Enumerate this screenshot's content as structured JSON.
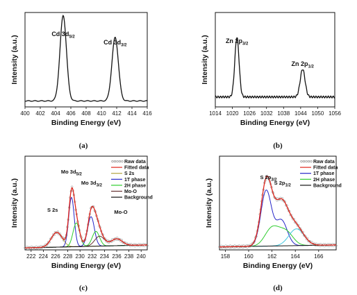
{
  "panel_labels": [
    "(a)",
    "(b)",
    "(c)",
    "(d)"
  ],
  "chart_data": [
    {
      "id": "a",
      "type": "line",
      "xlabel": "Binding Energy (eV)",
      "ylabel": "Intensity (a.u.)",
      "xlim": [
        400,
        416
      ],
      "xticks": [
        400,
        402,
        404,
        406,
        408,
        410,
        412,
        414,
        416
      ],
      "background": 0.06,
      "peaks": [
        {
          "center": 405.0,
          "height": 0.86,
          "width": 0.42
        },
        {
          "center": 411.8,
          "height": 0.64,
          "width": 0.42
        }
      ],
      "annotations": [
        {
          "main": "Cd 3d",
          "sub": "5/2",
          "x": 405.0
        },
        {
          "main": "Cd 3d",
          "sub": "3/2",
          "x": 411.8
        }
      ],
      "series": [
        {
          "color": "#111111"
        }
      ]
    },
    {
      "id": "b",
      "type": "line",
      "xlabel": "Binding Energy (eV)",
      "ylabel": "Intensity (a.u.)",
      "xlim": [
        1014,
        1056
      ],
      "xticks": [
        1014,
        1020,
        1026,
        1032,
        1038,
        1044,
        1050,
        1056
      ],
      "background": 0.1,
      "peaks": [
        {
          "center": 1021.6,
          "height": 0.6,
          "width": 0.75
        },
        {
          "center": 1044.7,
          "height": 0.28,
          "width": 0.85
        }
      ],
      "annotations": [
        {
          "main": "Zn 2p",
          "sub": "3/2",
          "x": 1021.6
        },
        {
          "main": "Zn 2p",
          "sub": "1/2",
          "x": 1044.7
        }
      ],
      "series": [
        {
          "color": "#111111"
        }
      ]
    },
    {
      "id": "c",
      "type": "line",
      "xlabel": "Binding Energy (eV)",
      "ylabel": "Intensity (a.u.)",
      "xlim": [
        221,
        241
      ],
      "xticks": [
        222,
        224,
        226,
        228,
        230,
        232,
        234,
        236,
        238,
        240
      ],
      "legend": {
        "position": "top-right",
        "entries": [
          "Raw data",
          "Fitted data",
          "S 2s",
          "1T phase",
          "2H phase",
          "Mo-O",
          "Background"
        ]
      },
      "series": [
        {
          "name": "Raw data",
          "color": "#888888",
          "style": "markers"
        },
        {
          "name": "Fitted data",
          "color": "#e0241b"
        },
        {
          "name": "S 2s",
          "color": "#b5a642",
          "peaks": [
            {
              "center": 226.2,
              "height": 0.15,
              "width": 0.9
            }
          ]
        },
        {
          "name": "1T phase",
          "color": "#2525c8",
          "peaks": [
            {
              "center": 228.6,
              "height": 0.5,
              "width": 0.45
            },
            {
              "center": 231.8,
              "height": 0.3,
              "width": 0.55
            }
          ]
        },
        {
          "name": "2H phase",
          "color": "#2ecc2e",
          "peaks": [
            {
              "center": 229.4,
              "height": 0.24,
              "width": 0.55
            },
            {
              "center": 232.6,
              "height": 0.15,
              "width": 0.6
            }
          ]
        },
        {
          "name": "Mo-O",
          "color": "#663333",
          "peaks": [
            {
              "center": 233.2,
              "height": 0.1,
              "width": 0.8
            },
            {
              "center": 236.0,
              "height": 0.07,
              "width": 0.9
            }
          ]
        },
        {
          "name": "Background",
          "color": "#111111",
          "baseline": [
            0.02,
            0.05
          ]
        }
      ],
      "annotations": [
        {
          "main": "S 2s",
          "sub": "",
          "x": 226.2
        },
        {
          "main": "Mo 3d",
          "sub": "5/2",
          "x": 228.6
        },
        {
          "main": "Mo 3d",
          "sub": "3/2",
          "x": 231.9
        },
        {
          "main": "Mo-O",
          "sub": "",
          "x": 236.0
        }
      ]
    },
    {
      "id": "d",
      "type": "line",
      "xlabel": "Binding Energy (eV)",
      "ylabel": "Intensity (a.u.)",
      "xlim": [
        157.5,
        167.5
      ],
      "xticks": [
        158,
        160,
        162,
        164,
        166
      ],
      "legend": {
        "position": "top-right",
        "entries": [
          "Raw data",
          "Fitted data",
          "1T phase",
          "2H phase",
          "Background"
        ]
      },
      "series": [
        {
          "name": "Raw data",
          "color": "#888888",
          "style": "markers"
        },
        {
          "name": "Fitted data",
          "color": "#e0241b"
        },
        {
          "name": "1T phase",
          "color": "#2525c8",
          "peaks": [
            {
              "center": 161.5,
              "height": 0.56,
              "width": 0.45
            },
            {
              "center": 162.8,
              "height": 0.26,
              "width": 0.5
            }
          ]
        },
        {
          "name": "2H phase",
          "color": "#2ecc2e",
          "peaks": [
            {
              "center": 162.0,
              "height": 0.18,
              "width": 0.6
            },
            {
              "center": 163.2,
              "height": 0.14,
              "width": 0.6
            }
          ]
        },
        {
          "name": "2H phase b",
          "color": "#40c8e0",
          "peaks": [
            {
              "center": 164.1,
              "height": 0.17,
              "width": 0.65
            }
          ]
        },
        {
          "name": "Background",
          "color": "#111111",
          "baseline": [
            0.03,
            0.05
          ]
        }
      ],
      "annotations": [
        {
          "main": "S 2p",
          "sub": "3/2",
          "x": 161.7
        },
        {
          "main": "S 2p",
          "sub": "1/2",
          "x": 162.9
        }
      ]
    }
  ]
}
